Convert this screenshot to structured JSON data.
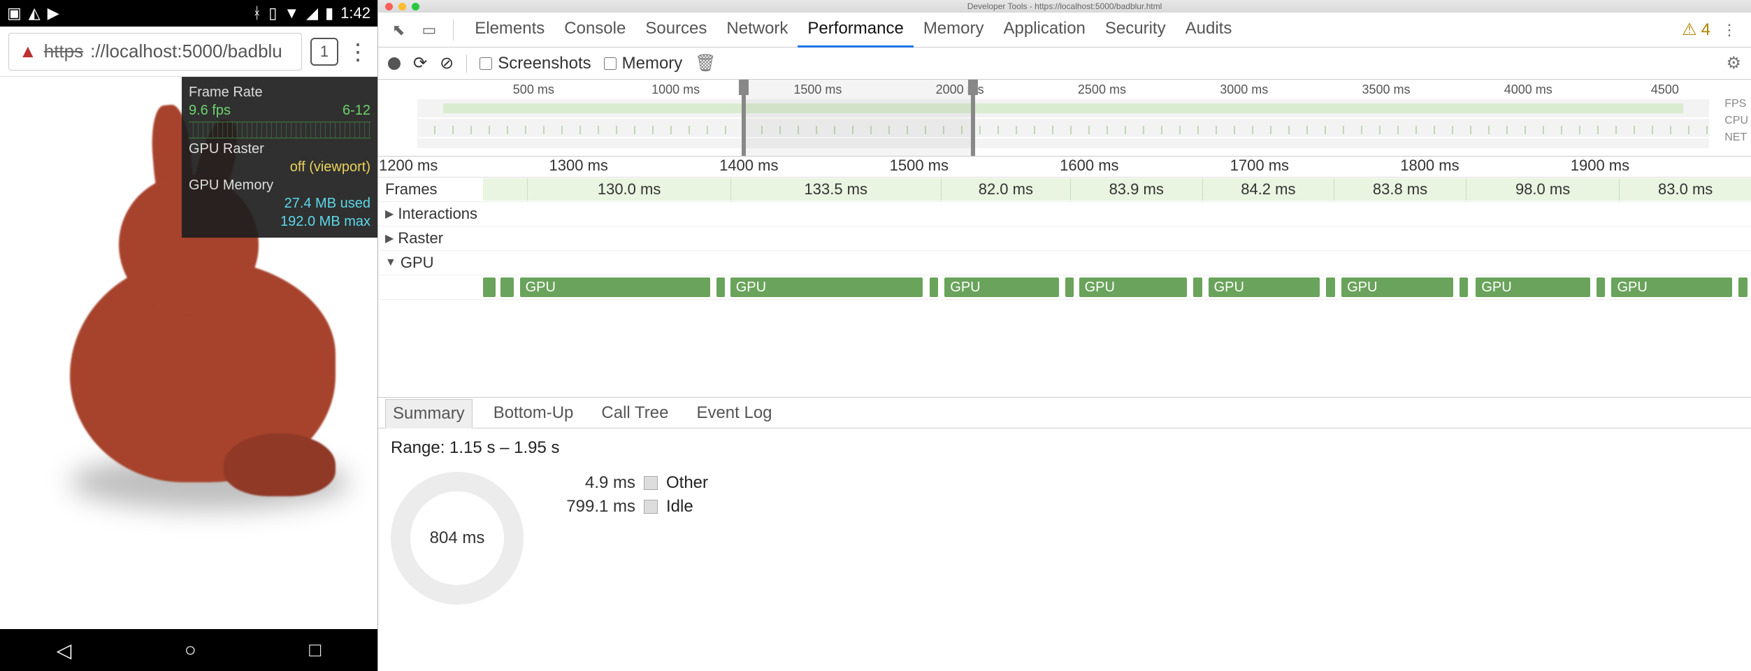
{
  "phone": {
    "status_time": "1:42",
    "url_scheme": "https",
    "url_visible": "://localhost:5000/badblu",
    "tab_count": "1",
    "overlay": {
      "frame_rate_label": "Frame Rate",
      "fps": "9.6 fps",
      "fps_range": "6-12",
      "gpu_raster_label": "GPU Raster",
      "gpu_raster_value": "off (viewport)",
      "gpu_mem_label": "GPU Memory",
      "gpu_mem_used": "27.4 MB used",
      "gpu_mem_max": "192.0 MB max"
    }
  },
  "devtools": {
    "window_title": "Developer Tools - https://localhost:5000/badblur.html",
    "tabs": [
      "Elements",
      "Console",
      "Sources",
      "Network",
      "Performance",
      "Memory",
      "Application",
      "Security",
      "Audits"
    ],
    "active_tab_index": 4,
    "warnings_count": "4",
    "toolbar": {
      "screenshots_label": "Screenshots",
      "memory_label": "Memory"
    },
    "overview": {
      "ticks": [
        "500 ms",
        "1000 ms",
        "1500 ms",
        "2000 ms",
        "2500 ms",
        "3000 ms",
        "3500 ms",
        "4000 ms",
        "4500 ms"
      ],
      "tick_pct": [
        9,
        20,
        31,
        42,
        53,
        64,
        75,
        86,
        97
      ],
      "side_labels": [
        "FPS",
        "CPU",
        "NET"
      ],
      "window_left_pct": 25.5,
      "window_right_pct": 43.8
    },
    "timeline": {
      "ruler_ticks": [
        "1200 ms",
        "1300 ms",
        "1400 ms",
        "1500 ms",
        "1600 ms",
        "1700 ms",
        "1800 ms",
        "1900 ms"
      ],
      "ruler_pct": [
        2.2,
        14.6,
        27.0,
        39.4,
        51.8,
        64.2,
        76.6,
        89.0
      ],
      "frames_label": "Frames",
      "frames": [
        {
          "left_pct": 3.5,
          "width_pct": 16.0,
          "label": "130.0 ms"
        },
        {
          "left_pct": 19.5,
          "width_pct": 16.6,
          "label": "133.5 ms"
        },
        {
          "left_pct": 36.1,
          "width_pct": 10.2,
          "label": "82.0 ms"
        },
        {
          "left_pct": 46.3,
          "width_pct": 10.4,
          "label": "83.9 ms"
        },
        {
          "left_pct": 56.7,
          "width_pct": 10.4,
          "label": "84.2 ms"
        },
        {
          "left_pct": 67.1,
          "width_pct": 10.4,
          "label": "83.8 ms"
        },
        {
          "left_pct": 77.5,
          "width_pct": 12.1,
          "label": "98.0 ms"
        },
        {
          "left_pct": 89.6,
          "width_pct": 10.4,
          "label": "83.0 ms"
        }
      ],
      "rows": {
        "interactions": "Interactions",
        "raster": "Raster",
        "gpu": "GPU"
      },
      "gpu_blocks": [
        {
          "left_pct": 0,
          "width_pct": 1.0,
          "thin": true
        },
        {
          "left_pct": 1.4,
          "width_pct": 1.0,
          "thin": true
        },
        {
          "left_pct": 2.9,
          "width_pct": 15.0,
          "label": "GPU"
        },
        {
          "left_pct": 18.4,
          "width_pct": 0.7,
          "thin": true
        },
        {
          "left_pct": 19.5,
          "width_pct": 15.2,
          "label": "GPU"
        },
        {
          "left_pct": 35.2,
          "width_pct": 0.7,
          "thin": true
        },
        {
          "left_pct": 36.4,
          "width_pct": 9.0,
          "label": "GPU"
        },
        {
          "left_pct": 45.9,
          "width_pct": 0.7,
          "thin": true
        },
        {
          "left_pct": 47.0,
          "width_pct": 8.5,
          "label": "GPU"
        },
        {
          "left_pct": 56.0,
          "width_pct": 0.7,
          "thin": true
        },
        {
          "left_pct": 57.2,
          "width_pct": 8.8,
          "label": "GPU"
        },
        {
          "left_pct": 66.5,
          "width_pct": 0.7,
          "thin": true
        },
        {
          "left_pct": 67.7,
          "width_pct": 8.8,
          "label": "GPU"
        },
        {
          "left_pct": 77.0,
          "width_pct": 0.7,
          "thin": true
        },
        {
          "left_pct": 78.3,
          "width_pct": 9.0,
          "label": "GPU"
        },
        {
          "left_pct": 87.8,
          "width_pct": 0.7,
          "thin": true
        },
        {
          "left_pct": 89.0,
          "width_pct": 9.5,
          "label": "GPU"
        },
        {
          "left_pct": 99.0,
          "width_pct": 0.7,
          "thin": true
        }
      ]
    },
    "bottom_tabs": [
      "Summary",
      "Bottom-Up",
      "Call Tree",
      "Event Log"
    ],
    "bottom_active_index": 0,
    "summary": {
      "range_label": "Range: 1.15 s – 1.95 s",
      "rows": [
        {
          "ms": "4.9 ms",
          "label": "Other"
        },
        {
          "ms": "799.1 ms",
          "label": "Idle"
        }
      ],
      "donut_center": "804 ms"
    }
  },
  "colors": {
    "gpu_block": "#6aa35b",
    "frames_bg": "#e9f4e1",
    "tab_underline": "#2074e8",
    "overlay_green": "#6dd36d",
    "overlay_yellow": "#e8d25c",
    "overlay_cyan": "#5cd8e8",
    "bunny": "#a7432c"
  }
}
